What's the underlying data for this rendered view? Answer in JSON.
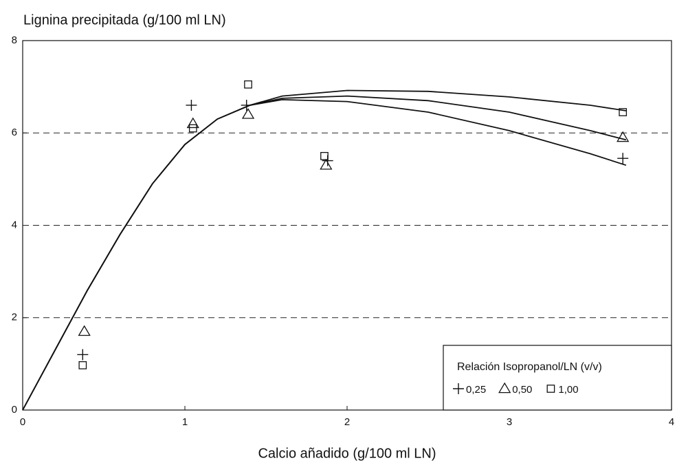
{
  "chart_data": {
    "type": "scatter",
    "y_label": "Lignina precipitada (g/100 ml LN)",
    "x_label": "Calcio añadido (g/100 ml LN)",
    "legend_title": "Relación Isopropanol/LN (v/v)",
    "legend": "lower right",
    "xlim": [
      0,
      4
    ],
    "xticks": [
      0,
      1,
      2,
      3,
      4
    ],
    "ylim": [
      0,
      8
    ],
    "yticks": [
      0,
      2,
      4,
      6,
      8
    ],
    "grid": true,
    "series": [
      {
        "name": "0,25",
        "marker": "plus",
        "color": "#111111",
        "x": [
          0.37,
          1.04,
          1.38,
          1.88,
          3.7
        ],
        "values": [
          1.2,
          6.6,
          6.6,
          5.4,
          5.45
        ]
      },
      {
        "name": "0,50",
        "marker": "triangle",
        "color": "#111111",
        "x": [
          0.38,
          1.05,
          1.39,
          1.87,
          3.7
        ],
        "values": [
          1.7,
          6.2,
          6.4,
          5.3,
          5.9
        ]
      },
      {
        "name": "1,00",
        "marker": "square",
        "color": "#111111",
        "x": [
          0.37,
          1.05,
          1.39,
          1.86,
          3.7
        ],
        "values": [
          0.97,
          6.1,
          7.05,
          5.5,
          6.45
        ]
      }
    ],
    "curves": [
      {
        "x": [
          0,
          0.2,
          0.4,
          0.6,
          0.8,
          1.0,
          1.2,
          1.4,
          1.6,
          2.0,
          2.5,
          3.0,
          3.5,
          3.72
        ],
        "values": [
          0,
          1.3,
          2.6,
          3.8,
          4.9,
          5.75,
          6.3,
          6.6,
          6.72,
          6.68,
          6.45,
          6.05,
          5.55,
          5.3
        ]
      },
      {
        "x": [
          0,
          0.2,
          0.4,
          0.6,
          0.8,
          1.0,
          1.2,
          1.4,
          1.6,
          2.0,
          2.5,
          3.0,
          3.5,
          3.72
        ],
        "values": [
          0,
          1.3,
          2.6,
          3.8,
          4.9,
          5.75,
          6.3,
          6.6,
          6.75,
          6.8,
          6.7,
          6.45,
          6.05,
          5.85
        ]
      },
      {
        "x": [
          0,
          0.2,
          0.4,
          0.6,
          0.8,
          1.0,
          1.2,
          1.4,
          1.6,
          2.0,
          2.5,
          3.0,
          3.5,
          3.72
        ],
        "values": [
          0,
          1.3,
          2.6,
          3.8,
          4.9,
          5.75,
          6.3,
          6.6,
          6.8,
          6.92,
          6.9,
          6.78,
          6.6,
          6.48
        ]
      }
    ]
  }
}
